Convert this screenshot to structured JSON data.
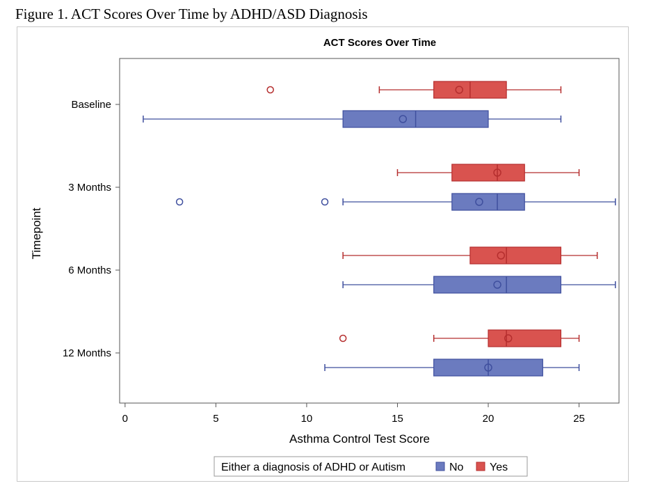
{
  "figure_caption": "Figure 1. ACT Scores Over Time by ADHD/ASD Diagnosis",
  "colors": {
    "yes": "#d9534f",
    "yes_stroke": "#b52e2e",
    "no": "#6b7bbf",
    "no_stroke": "#3f4f9e",
    "axis": "#555555"
  },
  "chart_data": {
    "type": "box",
    "orientation": "horizontal",
    "title": "ACT Scores Over Time",
    "xlabel": "Asthma Control Test Score",
    "ylabel": "Timepoint",
    "xlim": [
      -0.3,
      27.2
    ],
    "xticks": [
      0,
      5,
      10,
      15,
      20,
      25
    ],
    "categories": [
      "Baseline",
      "3 Months",
      "6 Months",
      "12 Months"
    ],
    "legend": {
      "title": "Either a diagnosis of ADHD or Autism",
      "position": "bottom",
      "entries": [
        "No",
        "Yes"
      ]
    },
    "series": [
      {
        "name": "Yes",
        "color_key": "yes",
        "boxes": [
          {
            "min": 14,
            "q1": 17,
            "median": 19,
            "q3": 21,
            "max": 24,
            "mean": 18.4,
            "outliers": [
              8
            ]
          },
          {
            "min": 15,
            "q1": 18,
            "median": 20.5,
            "q3": 22,
            "max": 25,
            "mean": 20.5,
            "outliers": []
          },
          {
            "min": 12,
            "q1": 19,
            "median": 21,
            "q3": 24,
            "max": 26,
            "mean": 20.7,
            "outliers": []
          },
          {
            "min": 17,
            "q1": 20,
            "median": 21,
            "q3": 24,
            "max": 25,
            "mean": 21.1,
            "outliers": [
              12
            ]
          }
        ]
      },
      {
        "name": "No",
        "color_key": "no",
        "boxes": [
          {
            "min": 1,
            "q1": 12,
            "median": 16,
            "q3": 20,
            "max": 24,
            "mean": 15.3,
            "outliers": []
          },
          {
            "min": 12,
            "q1": 18,
            "median": 20.5,
            "q3": 22,
            "max": 27,
            "mean": 19.5,
            "outliers": [
              3,
              11
            ]
          },
          {
            "min": 12,
            "q1": 17,
            "median": 21,
            "q3": 24,
            "max": 27,
            "mean": 20.5,
            "outliers": []
          },
          {
            "min": 11,
            "q1": 17,
            "median": 20,
            "q3": 23,
            "max": 25,
            "mean": 20.0,
            "outliers": []
          }
        ]
      }
    ]
  }
}
